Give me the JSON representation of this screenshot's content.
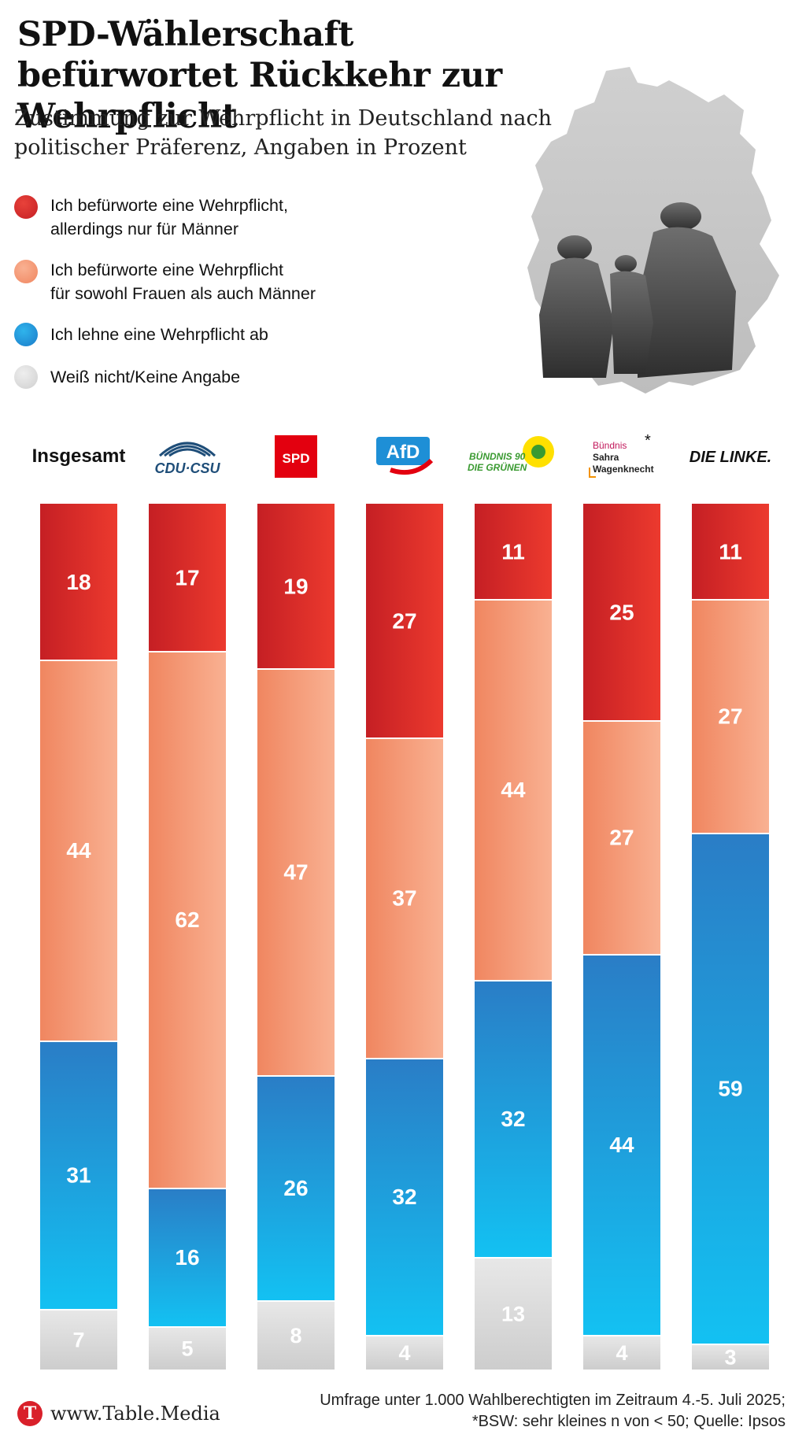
{
  "title": "SPD-Wählerschaft befürwortet Rückkehr zur Wehrpflicht",
  "subtitle": "Zustimmung zur Wehrpflicht in Deutschland nach politischer Präferenz, Angaben in Prozent",
  "legend": [
    {
      "label_line1": "Ich befürworte eine Wehrpflicht,",
      "label_line2": "allerdings nur für Männer",
      "color": "#d42a2a"
    },
    {
      "label_line1": "Ich befürworte eine Wehrpflicht",
      "label_line2": "für sowohl Frauen als auch Männer",
      "color": "#f4987a"
    },
    {
      "label_line1": "Ich lehne eine Wehrpflicht ab",
      "label_line2": "",
      "color": "#1e8fd6"
    },
    {
      "label_line1": "Weiß nicht/Keine Angabe",
      "label_line2": "",
      "color": "#dcdcdc"
    }
  ],
  "parties": {
    "insgesamt": "Insgesamt",
    "cdu": "CDU·CSU",
    "spd": "SPD",
    "afd": "AfD",
    "gruene_line1": "BÜNDNIS 90",
    "gruene_line2": "DIE GRÜNEN",
    "bsw_line1": "Bündnis",
    "bsw_line2": "Sahra",
    "bsw_line3": "Wagenknecht",
    "bsw_star": "*",
    "linke": "DIE LINKE."
  },
  "chart_data": {
    "type": "bar",
    "stacked": true,
    "orientation": "vertical",
    "categories": [
      "Insgesamt",
      "CDU/CSU",
      "SPD",
      "AfD",
      "Bündnis 90/Die Grünen",
      "BSW",
      "Die Linke"
    ],
    "series": [
      {
        "name": "Ich befürworte eine Wehrpflicht, allerdings nur für Männer",
        "color": "#d42a2a",
        "values": [
          18,
          17,
          19,
          27,
          11,
          25,
          11
        ]
      },
      {
        "name": "Ich befürworte eine Wehrpflicht für sowohl Frauen als auch Männer",
        "color": "#f4987a",
        "values": [
          44,
          62,
          47,
          37,
          44,
          27,
          27
        ]
      },
      {
        "name": "Ich lehne eine Wehrpflicht ab",
        "color": "#1e8fd6",
        "values": [
          31,
          16,
          26,
          32,
          32,
          44,
          59
        ]
      },
      {
        "name": "Weiß nicht/Keine Angabe",
        "color": "#dcdcdc",
        "values": [
          7,
          5,
          8,
          4,
          13,
          4,
          3
        ]
      }
    ]
  },
  "footer": {
    "logo_letter": "T",
    "url": "www.Table.Media",
    "note_line1": "Umfrage unter 1.000 Wahlberechtigten im Zeitraum 4.-5. Juli 2025;",
    "note_line2": "*BSW: sehr kleines n von < 50; Quelle: Ipsos"
  }
}
